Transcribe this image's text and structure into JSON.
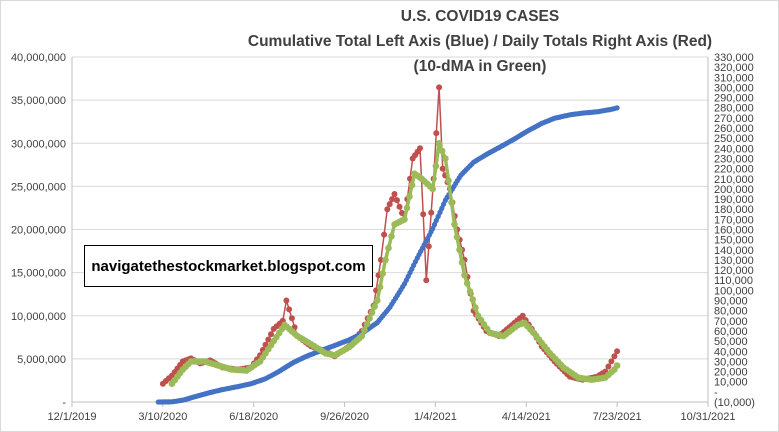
{
  "chart_data": {
    "type": "line",
    "title": "U.S. COVID19 CASES",
    "subtitle_line1": "Cumulative Total Left Axis (Blue) / Daily Totals Right Axis (Red)",
    "subtitle_line2": "(10-dMA in Green)",
    "annotation": "navigatethestockmarket.blogspot.com",
    "x_axis": {
      "type": "date",
      "start": "2019-12-01",
      "end": "2021-10-31",
      "tick_labels": [
        "12/1/2019",
        "3/10/2020",
        "6/18/2020",
        "9/26/2020",
        "1/4/2021",
        "4/14/2021",
        "7/23/2021",
        "10/31/2021"
      ]
    },
    "y_left": {
      "min": 0,
      "max": 40000000,
      "step": 5000000,
      "tick_labels": [
        "-",
        "5,000,000",
        "10,000,000",
        "15,000,000",
        "20,000,000",
        "25,000,000",
        "30,000,000",
        "35,000,000",
        "40,000,000"
      ]
    },
    "y_right": {
      "min": -10000,
      "max": 330000,
      "step": 10000,
      "tick_labels": [
        "(10,000)",
        "-",
        "10,000",
        "20,000",
        "30,000",
        "40,000",
        "50,000",
        "60,000",
        "70,000",
        "80,000",
        "90,000",
        "100,000",
        "110,000",
        "120,000",
        "130,000",
        "140,000",
        "150,000",
        "160,000",
        "170,000",
        "180,000",
        "190,000",
        "200,000",
        "210,000",
        "220,000",
        "230,000",
        "240,000",
        "250,000",
        "260,000",
        "270,000",
        "280,000",
        "290,000",
        "300,000",
        "310,000",
        "320,000",
        "330,000"
      ]
    },
    "gridlines": true,
    "series": [
      {
        "name": "Cumulative Total",
        "axis": "left",
        "color": "#4472c4",
        "points": [
          [
            "2020-03-05",
            100
          ],
          [
            "2020-03-20",
            20000
          ],
          [
            "2020-04-01",
            215000
          ],
          [
            "2020-04-15",
            640000
          ],
          [
            "2020-05-01",
            1100000
          ],
          [
            "2020-05-15",
            1450000
          ],
          [
            "2020-06-01",
            1800000
          ],
          [
            "2020-06-15",
            2120000
          ],
          [
            "2020-07-01",
            2700000
          ],
          [
            "2020-07-15",
            3500000
          ],
          [
            "2020-08-01",
            4600000
          ],
          [
            "2020-08-15",
            5300000
          ],
          [
            "2020-09-01",
            6000000
          ],
          [
            "2020-09-15",
            6550000
          ],
          [
            "2020-10-01",
            7200000
          ],
          [
            "2020-10-15",
            7950000
          ],
          [
            "2020-11-01",
            9200000
          ],
          [
            "2020-11-15",
            11000000
          ],
          [
            "2020-12-01",
            13700000
          ],
          [
            "2020-12-15",
            16700000
          ],
          [
            "2021-01-01",
            20100000
          ],
          [
            "2021-01-15",
            23400000
          ],
          [
            "2021-02-01",
            26300000
          ],
          [
            "2021-02-15",
            27800000
          ],
          [
            "2021-03-01",
            28700000
          ],
          [
            "2021-03-15",
            29500000
          ],
          [
            "2021-04-01",
            30500000
          ],
          [
            "2021-04-15",
            31400000
          ],
          [
            "2021-05-01",
            32300000
          ],
          [
            "2021-05-15",
            32900000
          ],
          [
            "2021-06-01",
            33300000
          ],
          [
            "2021-06-15",
            33500000
          ],
          [
            "2021-07-01",
            33650000
          ],
          [
            "2021-07-15",
            33900000
          ],
          [
            "2021-07-23",
            34100000
          ]
        ]
      },
      {
        "name": "Daily Totals",
        "axis": "right",
        "color": "#c0504d",
        "points": [
          [
            "2020-03-10",
            8000
          ],
          [
            "2020-03-20",
            16000
          ],
          [
            "2020-04-01",
            30000
          ],
          [
            "2020-04-10",
            33000
          ],
          [
            "2020-04-20",
            28000
          ],
          [
            "2020-05-01",
            31000
          ],
          [
            "2020-05-15",
            24000
          ],
          [
            "2020-06-01",
            22000
          ],
          [
            "2020-06-15",
            24000
          ],
          [
            "2020-06-25",
            36000
          ],
          [
            "2020-07-10",
            62000
          ],
          [
            "2020-07-20",
            70000
          ],
          [
            "2020-07-24",
            90000
          ],
          [
            "2020-08-05",
            55000
          ],
          [
            "2020-08-20",
            45000
          ],
          [
            "2020-09-05",
            40000
          ],
          [
            "2020-09-15",
            35000
          ],
          [
            "2020-10-01",
            45000
          ],
          [
            "2020-10-15",
            60000
          ],
          [
            "2020-10-28",
            85000
          ],
          [
            "2020-11-05",
            130000
          ],
          [
            "2020-11-12",
            180000
          ],
          [
            "2020-11-20",
            195000
          ],
          [
            "2020-12-01",
            170000
          ],
          [
            "2020-12-10",
            230000
          ],
          [
            "2020-12-18",
            240000
          ],
          [
            "2020-12-25",
            110000
          ],
          [
            "2021-01-02",
            210000
          ],
          [
            "2021-01-08",
            300000
          ],
          [
            "2021-01-12",
            220000
          ],
          [
            "2021-01-20",
            200000
          ],
          [
            "2021-01-28",
            160000
          ],
          [
            "2021-02-05",
            130000
          ],
          [
            "2021-02-15",
            80000
          ],
          [
            "2021-03-01",
            60000
          ],
          [
            "2021-03-15",
            55000
          ],
          [
            "2021-04-01",
            68000
          ],
          [
            "2021-04-10",
            75000
          ],
          [
            "2021-04-20",
            62000
          ],
          [
            "2021-05-01",
            45000
          ],
          [
            "2021-05-15",
            30000
          ],
          [
            "2021-06-01",
            15000
          ],
          [
            "2021-06-15",
            12000
          ],
          [
            "2021-07-01",
            15000
          ],
          [
            "2021-07-10",
            20000
          ],
          [
            "2021-07-20",
            35000
          ],
          [
            "2021-07-23",
            40000
          ]
        ]
      },
      {
        "name": "10-dMA",
        "axis": "right",
        "color": "#9bbb59",
        "points": [
          [
            "2020-03-20",
            8000
          ],
          [
            "2020-04-01",
            22000
          ],
          [
            "2020-04-10",
            30000
          ],
          [
            "2020-04-25",
            30000
          ],
          [
            "2020-05-10",
            26000
          ],
          [
            "2020-05-25",
            22000
          ],
          [
            "2020-06-10",
            21000
          ],
          [
            "2020-06-25",
            30000
          ],
          [
            "2020-07-10",
            50000
          ],
          [
            "2020-07-22",
            66000
          ],
          [
            "2020-08-05",
            55000
          ],
          [
            "2020-08-20",
            47000
          ],
          [
            "2020-09-05",
            38000
          ],
          [
            "2020-09-15",
            36000
          ],
          [
            "2020-10-01",
            44000
          ],
          [
            "2020-10-15",
            55000
          ],
          [
            "2020-11-01",
            90000
          ],
          [
            "2020-11-10",
            130000
          ],
          [
            "2020-11-20",
            165000
          ],
          [
            "2020-12-01",
            170000
          ],
          [
            "2020-12-12",
            215000
          ],
          [
            "2020-12-20",
            210000
          ],
          [
            "2021-01-01",
            200000
          ],
          [
            "2021-01-08",
            245000
          ],
          [
            "2021-01-15",
            230000
          ],
          [
            "2021-01-25",
            165000
          ],
          [
            "2021-02-05",
            115000
          ],
          [
            "2021-02-20",
            75000
          ],
          [
            "2021-03-05",
            58000
          ],
          [
            "2021-03-20",
            55000
          ],
          [
            "2021-04-05",
            66000
          ],
          [
            "2021-04-12",
            68000
          ],
          [
            "2021-04-25",
            55000
          ],
          [
            "2021-05-10",
            38000
          ],
          [
            "2021-05-25",
            24000
          ],
          [
            "2021-06-10",
            14000
          ],
          [
            "2021-06-25",
            12000
          ],
          [
            "2021-07-10",
            14000
          ],
          [
            "2021-07-20",
            22000
          ],
          [
            "2021-07-23",
            26000
          ]
        ]
      }
    ]
  }
}
